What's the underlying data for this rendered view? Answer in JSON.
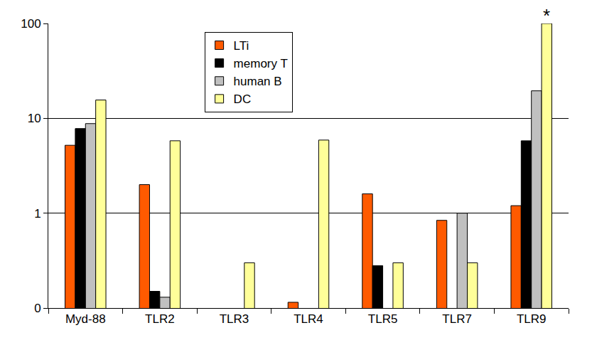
{
  "chart_data": {
    "type": "bar",
    "categories": [
      "Myd-88",
      "TLR2",
      "TLR3",
      "TLR4",
      "TLR5",
      "TLR7",
      "TLR9"
    ],
    "series": [
      {
        "name": "LTi",
        "color": "#ff5a00",
        "values": [
          5.2,
          2.0,
          null,
          0.115,
          1.6,
          0.84,
          1.2
        ]
      },
      {
        "name": "memory T",
        "color": "#000000",
        "values": [
          7.8,
          0.15,
          null,
          null,
          0.28,
          null,
          5.8
        ]
      },
      {
        "name": "human B",
        "color": "#c0c0c0",
        "values": [
          8.8,
          0.13,
          null,
          null,
          null,
          1.0,
          19.5
        ]
      },
      {
        "name": "DC",
        "color": "#ffff99",
        "values": [
          15.6,
          5.8,
          0.3,
          5.9,
          0.3,
          0.3,
          100
        ]
      }
    ],
    "log": "y",
    "ylim": [
      0.1,
      100
    ],
    "yticks": [
      {
        "value": 0.1,
        "label": "0"
      },
      1,
      10,
      100
    ],
    "grid": true,
    "legend": "top",
    "annotations": [
      {
        "text": "*",
        "category": "TLR9",
        "series": "DC"
      }
    ]
  }
}
